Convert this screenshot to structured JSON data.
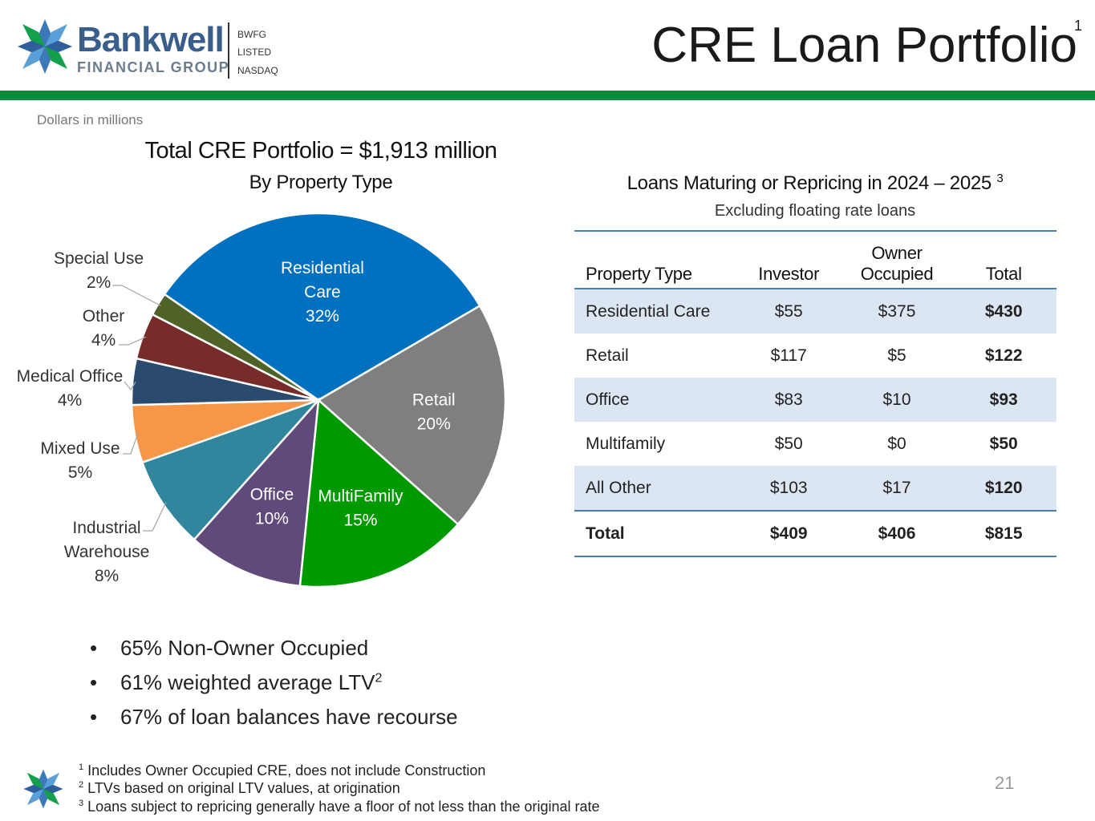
{
  "header": {
    "brand_name": "Bankwell",
    "brand_sub": "FINANCIAL GROUP",
    "ticker_lines": [
      "BWFG",
      "LISTED",
      "NASDAQ"
    ],
    "page_title": "CRE Loan Portfolio",
    "title_footnote": "1",
    "accent_color": "#0a8a3a"
  },
  "units_note": "Dollars in millions",
  "chart_data": {
    "type": "pie",
    "title": "Total CRE Portfolio = $1,913 million",
    "subtitle": "By Property Type",
    "slices": [
      {
        "label": "Residential Care",
        "label_lines": [
          "Residential",
          "Care"
        ],
        "value": 32,
        "display": "32%",
        "color": "#0070c0",
        "label_inside": true
      },
      {
        "label": "Retail",
        "label_lines": [
          "Retail"
        ],
        "value": 20,
        "display": "20%",
        "color": "#7f7f7f",
        "label_inside": true
      },
      {
        "label": "MultiFamily",
        "label_lines": [
          "MultiFamily"
        ],
        "value": 15,
        "display": "15%",
        "color": "#009a00",
        "label_inside": true
      },
      {
        "label": "Office",
        "label_lines": [
          "Office"
        ],
        "value": 10,
        "display": "10%",
        "color": "#604a7b",
        "label_inside": true
      },
      {
        "label": "Industrial Warehouse",
        "label_lines": [
          "Industrial",
          "Warehouse"
        ],
        "value": 8,
        "display": "8%",
        "color": "#31859c",
        "label_inside": false
      },
      {
        "label": "Mixed Use",
        "label_lines": [
          "Mixed Use"
        ],
        "value": 5,
        "display": "5%",
        "color": "#f79646",
        "label_inside": false
      },
      {
        "label": "Medical Office",
        "label_lines": [
          "Medical Office"
        ],
        "value": 4,
        "display": "4%",
        "color": "#2a4a6e",
        "label_inside": false
      },
      {
        "label": "Other",
        "label_lines": [
          "Other"
        ],
        "value": 4,
        "display": "4%",
        "color": "#772c2a",
        "label_inside": false
      },
      {
        "label": "Special Use",
        "label_lines": [
          "Special Use"
        ],
        "value": 2,
        "display": "2%",
        "color": "#4f6228",
        "label_inside": false
      }
    ]
  },
  "table": {
    "title": "Loans Maturing or Repricing in 2024 – 2025",
    "title_footnote": "3",
    "subtitle": "Excluding floating rate loans",
    "headers": [
      "Property Type",
      "Investor",
      "Owner Occupied",
      "Total"
    ],
    "rows": [
      [
        "Residential Care",
        "$55",
        "$375",
        "$430"
      ],
      [
        "Retail",
        "$117",
        "$5",
        "$122"
      ],
      [
        "Office",
        "$83",
        "$10",
        "$93"
      ],
      [
        "Multifamily",
        "$50",
        "$0",
        "$50"
      ],
      [
        "All Other",
        "$103",
        "$17",
        "$120"
      ]
    ],
    "total_row": [
      "Total",
      "$409",
      "$406",
      "$815"
    ]
  },
  "bullets": [
    {
      "text": "65% Non-Owner Occupied",
      "sup": ""
    },
    {
      "text": "61% weighted average LTV",
      "sup": "2"
    },
    {
      "text": "67% of loan balances have recourse",
      "sup": ""
    }
  ],
  "footnotes": [
    {
      "num": "1",
      "text": "Includes Owner Occupied CRE, does not include Construction"
    },
    {
      "num": "2",
      "text": "LTVs based on original LTV values, at origination"
    },
    {
      "num": "3",
      "text": "Loans subject to repricing generally have a floor of not less than the original rate"
    }
  ],
  "page_number": "21"
}
